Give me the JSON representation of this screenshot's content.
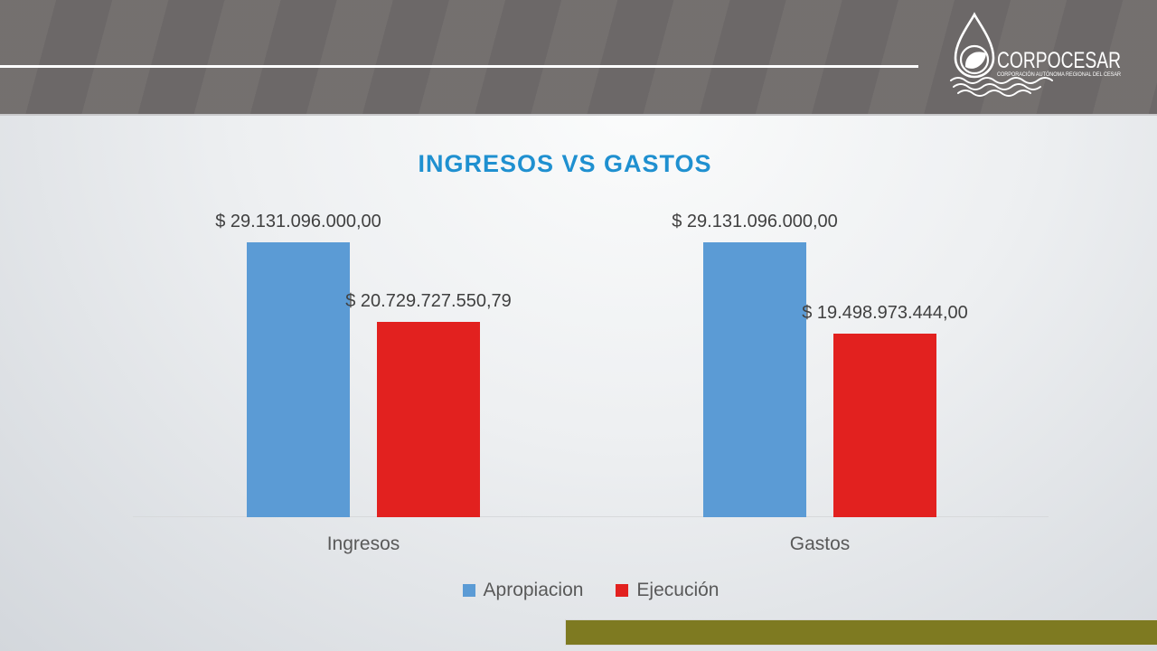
{
  "header": {
    "logo": {
      "name": "CORPOCESAR",
      "tagline": "CORPORACIÓN AUTÓNOMA REGIONAL DEL CESAR"
    }
  },
  "title": "INGRESOS VS GASTOS",
  "chart_data": {
    "type": "bar",
    "title": "INGRESOS VS GASTOS",
    "categories": [
      "Ingresos",
      "Gastos"
    ],
    "series": [
      {
        "name": "Apropiacion",
        "color": "#5b9bd5",
        "values": [
          29131096000,
          29131096000
        ],
        "labels": [
          "$ 29.131.096.000,00",
          "$ 29.131.096.000,00"
        ]
      },
      {
        "name": "Ejecución",
        "color": "#e2211f",
        "values": [
          20729727550.79,
          19498973444
        ],
        "labels": [
          "$ 20.729.727.550,79",
          "$ 19.498.973.444,00"
        ]
      }
    ],
    "ylim": [
      0,
      29131096000
    ],
    "xlabel": "",
    "ylabel": "",
    "grid": false,
    "legend_position": "bottom",
    "data_labels": true
  },
  "colors": {
    "title": "#1f90d0",
    "header_bg": "#6f6b6a",
    "footer_bar": "#7e7a21",
    "axis_line": "#d7d9db",
    "label_text": "#404040"
  }
}
